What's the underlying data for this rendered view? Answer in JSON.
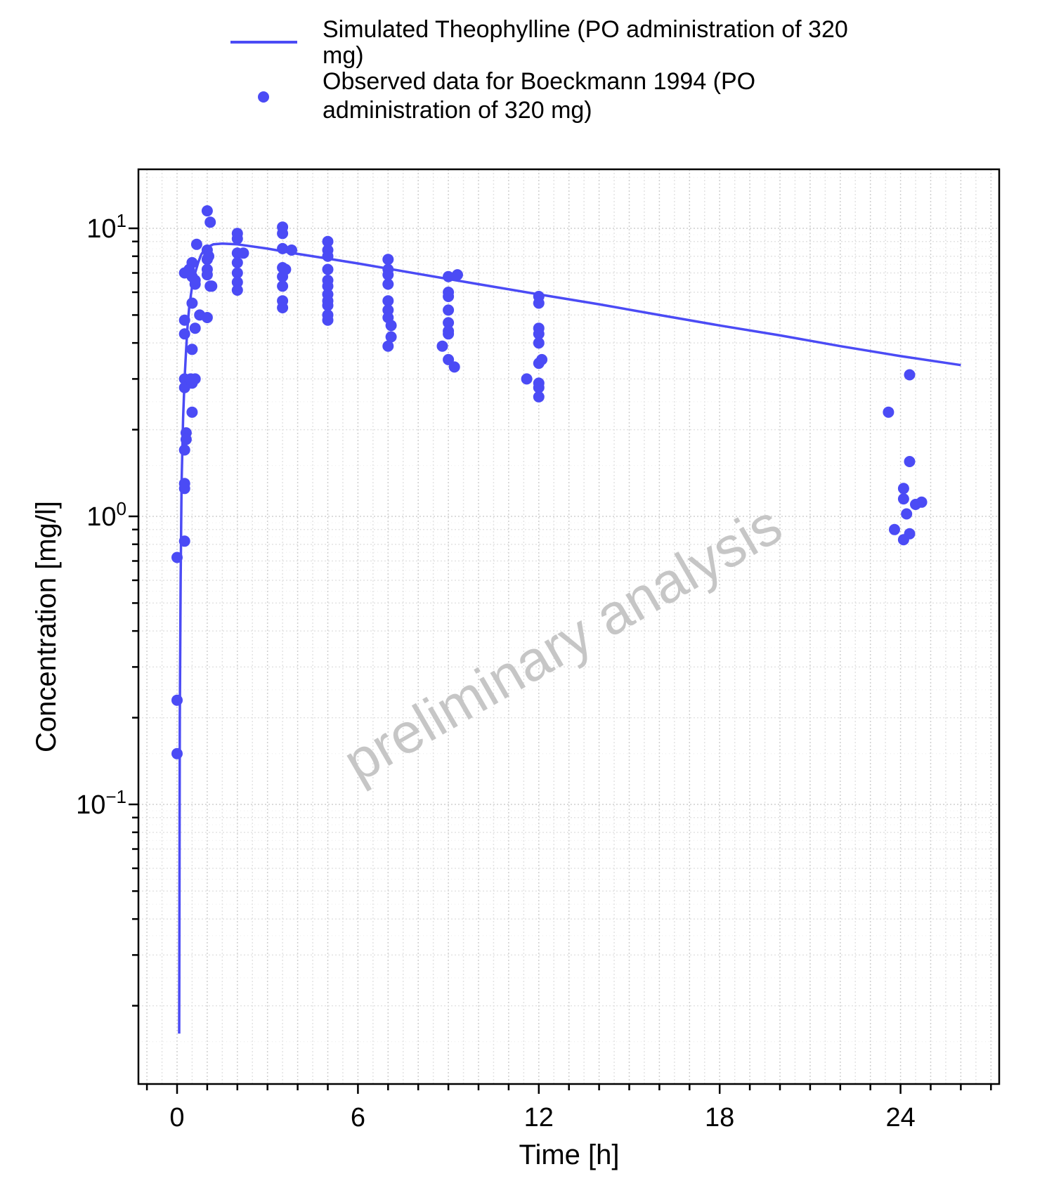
{
  "chart_data": {
    "type": "scatter",
    "title": "",
    "xlabel": "Time [h]",
    "ylabel": "Concentration [mg/l]",
    "xlim": [
      -1.3,
      27.3
    ],
    "ylim": [
      0.011,
      17
    ],
    "xscale": "linear",
    "yscale": "log",
    "xticks": [
      0,
      6,
      12,
      18,
      24
    ],
    "xtick_labels": [
      "0",
      "6",
      "12",
      "18",
      "24"
    ],
    "yticks": [
      {
        "value": 10,
        "base": "10",
        "exp": "1"
      },
      {
        "value": 1,
        "base": "10",
        "exp": "0"
      },
      {
        "value": 0.1,
        "base": "10",
        "exp": "−1"
      }
    ],
    "grid": true,
    "legend_position": "top",
    "watermark": "preliminary analysis",
    "series": [
      {
        "name": "Simulated Theophylline (PO administration of 320 mg)",
        "kind": "line",
        "color": "#4B4BF5",
        "x": [
          0.07,
          0.09,
          0.12,
          0.15,
          0.2,
          0.25,
          0.3,
          0.35,
          0.4,
          0.5,
          0.6,
          0.7,
          0.8,
          0.9,
          1.0,
          1.2,
          1.5,
          2.0,
          2.5,
          3,
          4,
          5,
          6,
          8,
          10,
          12,
          14,
          16,
          18,
          20,
          22,
          24,
          26
        ],
        "y": [
          0.016,
          0.2,
          0.6,
          1.3,
          2.2,
          3.0,
          3.8,
          4.6,
          5.3,
          6.3,
          7.0,
          7.6,
          8.1,
          8.4,
          8.6,
          8.8,
          8.85,
          8.8,
          8.65,
          8.5,
          8.15,
          7.85,
          7.55,
          6.95,
          6.4,
          5.9,
          5.45,
          5.0,
          4.6,
          4.25,
          3.9,
          3.6,
          3.35
        ]
      },
      {
        "name": "Observed data for Boeckmann 1994 (PO administration of 320 mg)",
        "kind": "scatter",
        "color": "#4B4BF5",
        "points": [
          [
            0.0,
            0.72
          ],
          [
            0.0,
            0.23
          ],
          [
            0.0,
            0.15
          ],
          [
            0.25,
            7.0
          ],
          [
            0.25,
            4.8
          ],
          [
            0.25,
            4.3
          ],
          [
            0.25,
            3.0
          ],
          [
            0.25,
            2.8
          ],
          [
            0.25,
            1.7
          ],
          [
            0.25,
            1.3
          ],
          [
            0.25,
            1.25
          ],
          [
            0.25,
            0.82
          ],
          [
            0.3,
            1.95
          ],
          [
            0.3,
            1.85
          ],
          [
            0.4,
            7.2
          ],
          [
            0.45,
            3.0
          ],
          [
            0.5,
            2.9
          ],
          [
            0.5,
            2.3
          ],
          [
            0.5,
            7.6
          ],
          [
            0.5,
            6.8
          ],
          [
            0.5,
            5.5
          ],
          [
            0.5,
            3.8
          ],
          [
            0.6,
            6.4
          ],
          [
            0.6,
            6.6
          ],
          [
            0.6,
            4.5
          ],
          [
            0.6,
            3.0
          ],
          [
            0.65,
            8.8
          ],
          [
            0.75,
            5.0
          ],
          [
            1.0,
            11.5
          ],
          [
            1.0,
            8.4
          ],
          [
            1.0,
            7.8
          ],
          [
            1.0,
            7.2
          ],
          [
            1.0,
            6.9
          ],
          [
            1.0,
            4.9
          ],
          [
            1.05,
            8.0
          ],
          [
            1.1,
            10.5
          ],
          [
            1.1,
            6.3
          ],
          [
            1.15,
            6.3
          ],
          [
            2.0,
            9.6
          ],
          [
            2.0,
            9.2
          ],
          [
            2.0,
            8.2
          ],
          [
            2.0,
            7.6
          ],
          [
            2.0,
            7.0
          ],
          [
            2.0,
            6.5
          ],
          [
            2.0,
            6.1
          ],
          [
            2.2,
            8.2
          ],
          [
            3.5,
            10.1
          ],
          [
            3.5,
            9.6
          ],
          [
            3.5,
            8.5
          ],
          [
            3.5,
            7.3
          ],
          [
            3.5,
            6.8
          ],
          [
            3.5,
            6.3
          ],
          [
            3.5,
            5.6
          ],
          [
            3.5,
            5.3
          ],
          [
            3.6,
            7.2
          ],
          [
            3.8,
            8.4
          ],
          [
            5.0,
            9.0
          ],
          [
            5.0,
            8.4
          ],
          [
            5.0,
            8.0
          ],
          [
            5.0,
            7.2
          ],
          [
            5.0,
            6.6
          ],
          [
            5.0,
            6.3
          ],
          [
            5.0,
            5.9
          ],
          [
            5.0,
            5.6
          ],
          [
            5.0,
            5.4
          ],
          [
            5.0,
            5.0
          ],
          [
            5.0,
            4.8
          ],
          [
            7.0,
            7.8
          ],
          [
            7.0,
            7.2
          ],
          [
            7.0,
            6.9
          ],
          [
            7.0,
            6.4
          ],
          [
            7.0,
            5.6
          ],
          [
            7.0,
            5.2
          ],
          [
            7.0,
            4.9
          ],
          [
            7.0,
            3.9
          ],
          [
            7.1,
            4.6
          ],
          [
            7.1,
            4.2
          ],
          [
            8.8,
            3.9
          ],
          [
            9.0,
            6.8
          ],
          [
            9.0,
            6.0
          ],
          [
            9.0,
            5.8
          ],
          [
            9.0,
            5.2
          ],
          [
            9.0,
            4.7
          ],
          [
            9.0,
            4.4
          ],
          [
            9.0,
            4.3
          ],
          [
            9.0,
            3.5
          ],
          [
            9.2,
            3.3
          ],
          [
            9.3,
            6.9
          ],
          [
            11.6,
            3.0
          ],
          [
            12.0,
            5.8
          ],
          [
            12.0,
            5.5
          ],
          [
            12.0,
            4.5
          ],
          [
            12.0,
            4.3
          ],
          [
            12.0,
            4.0
          ],
          [
            12.0,
            3.4
          ],
          [
            12.0,
            2.9
          ],
          [
            12.0,
            2.8
          ],
          [
            12.0,
            2.6
          ],
          [
            12.1,
            3.5
          ],
          [
            23.6,
            2.3
          ],
          [
            23.8,
            0.9
          ],
          [
            24.1,
            1.25
          ],
          [
            24.1,
            1.15
          ],
          [
            24.1,
            0.83
          ],
          [
            24.2,
            1.02
          ],
          [
            24.3,
            3.1
          ],
          [
            24.3,
            1.55
          ],
          [
            24.3,
            0.87
          ],
          [
            24.5,
            1.1
          ],
          [
            24.7,
            1.12
          ]
        ]
      }
    ]
  }
}
